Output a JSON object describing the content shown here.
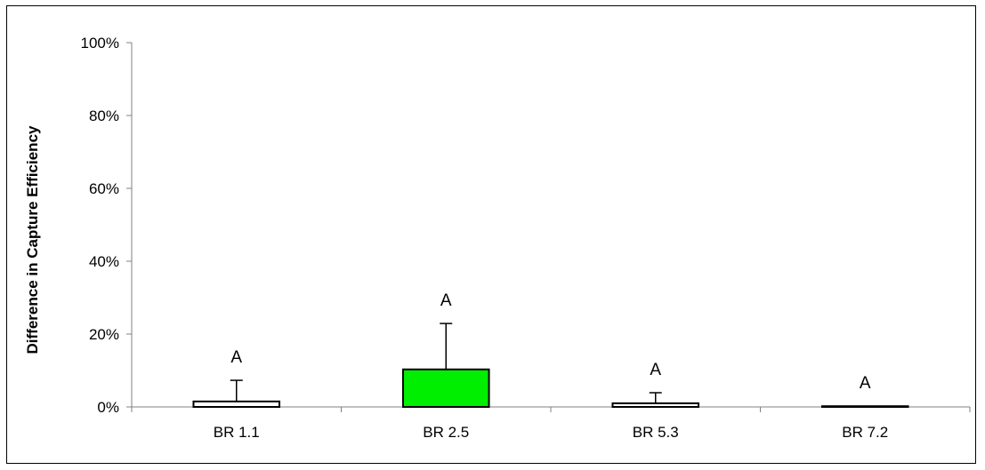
{
  "chart_data": {
    "type": "bar",
    "title": "",
    "xlabel": "",
    "ylabel": "Difference in Capture Efficiency",
    "ylim": [
      0,
      100
    ],
    "y_ticks": [
      "0%",
      "20%",
      "40%",
      "60%",
      "80%",
      "100%"
    ],
    "categories": [
      "BR 1.1",
      "BR 2.5",
      "BR 5.3",
      "BR 7.2"
    ],
    "values": [
      1.5,
      10.3,
      1.0,
      0.1
    ],
    "error_upper": [
      7.3,
      22.9,
      3.9,
      0.1
    ],
    "annotations": [
      "A",
      "A",
      "A",
      "A"
    ],
    "bar_colors": [
      "#ffffff",
      "#00ee00",
      "#ffffff",
      "#ffffff"
    ],
    "grid": false
  }
}
